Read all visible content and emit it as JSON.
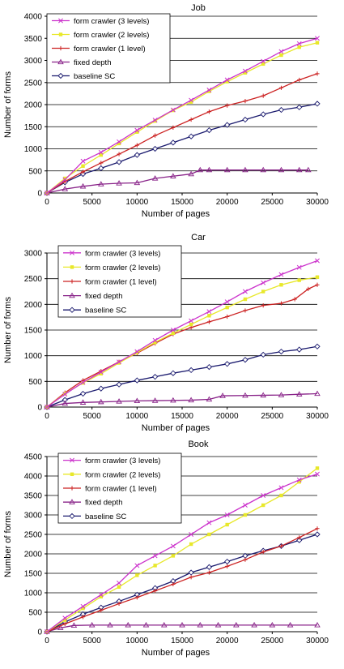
{
  "chart_data": [
    {
      "type": "line",
      "title": "Job",
      "xlabel": "Number of pages",
      "ylabel": "Number of forms",
      "xlim": [
        0,
        30000
      ],
      "ylim": [
        0,
        4000
      ],
      "xticks": [
        0,
        5000,
        10000,
        15000,
        20000,
        25000,
        30000
      ],
      "yticks": [
        0,
        500,
        1000,
        1500,
        2000,
        2500,
        3000,
        3500,
        4000
      ],
      "xtick_labels": [
        "0",
        "5000",
        "10000",
        "15000",
        "20000",
        "25000",
        "30000"
      ],
      "ytick_labels": [
        "0",
        "500",
        "1000",
        "1500",
        "2000",
        "2500",
        "3000",
        "3500",
        "4000"
      ],
      "grid": "horizontal",
      "legend_position": "top-left",
      "series": [
        {
          "name": "form crawler (3 levels)",
          "color": "#cc33cc",
          "marker": "x",
          "x": [
            0,
            2000,
            4000,
            6000,
            8000,
            10000,
            12000,
            14000,
            16000,
            18000,
            20000,
            22000,
            24000,
            26000,
            28000,
            30000
          ],
          "y": [
            0,
            300,
            720,
            920,
            1160,
            1420,
            1650,
            1880,
            2100,
            2330,
            2560,
            2760,
            2980,
            3200,
            3380,
            3500
          ]
        },
        {
          "name": "form crawler (2 levels)",
          "color": "#e8e82a",
          "marker": "square",
          "x": [
            0,
            2000,
            4000,
            6000,
            8000,
            10000,
            12000,
            14000,
            16000,
            18000,
            20000,
            22000,
            24000,
            26000,
            28000,
            30000
          ],
          "y": [
            0,
            330,
            610,
            860,
            1120,
            1380,
            1630,
            1870,
            2060,
            2300,
            2520,
            2720,
            2920,
            3120,
            3300,
            3400
          ]
        },
        {
          "name": "form crawler (1 level)",
          "color": "#cc2222",
          "marker": "plus",
          "x": [
            0,
            2000,
            4000,
            6000,
            8000,
            10000,
            12000,
            14000,
            16000,
            18000,
            20000,
            22000,
            24000,
            26000,
            28000,
            30000
          ],
          "y": [
            0,
            260,
            480,
            680,
            880,
            1080,
            1300,
            1480,
            1660,
            1840,
            1980,
            2080,
            2200,
            2380,
            2560,
            2700
          ]
        },
        {
          "name": "fixed depth",
          "color": "#882288",
          "marker": "triangle",
          "x": [
            0,
            2000,
            4000,
            6000,
            8000,
            10000,
            12000,
            14000,
            16000,
            17000,
            18000,
            20000,
            22000,
            24000,
            26000,
            28000,
            29000
          ],
          "y": [
            0,
            90,
            150,
            200,
            220,
            230,
            330,
            380,
            430,
            520,
            520,
            520,
            520,
            520,
            520,
            520,
            520
          ]
        },
        {
          "name": "baseline SC",
          "color": "#1a1a6e",
          "marker": "diamond",
          "x": [
            0,
            2000,
            4000,
            6000,
            8000,
            10000,
            12000,
            14000,
            16000,
            18000,
            20000,
            22000,
            24000,
            26000,
            28000,
            30000
          ],
          "y": [
            0,
            240,
            430,
            560,
            700,
            860,
            1000,
            1140,
            1280,
            1420,
            1540,
            1660,
            1780,
            1880,
            1940,
            2020
          ]
        }
      ]
    },
    {
      "type": "line",
      "title": "Car",
      "xlabel": "Number of pages",
      "ylabel": "Number of forms",
      "xlim": [
        0,
        30000
      ],
      "ylim": [
        0,
        3000
      ],
      "xticks": [
        0,
        5000,
        10000,
        15000,
        20000,
        25000,
        30000
      ],
      "yticks": [
        0,
        500,
        1000,
        1500,
        2000,
        2500,
        3000
      ],
      "xtick_labels": [
        "0",
        "5000",
        "10000",
        "15000",
        "20000",
        "25000",
        "30000"
      ],
      "ytick_labels": [
        "0",
        "500",
        "1000",
        "1500",
        "2000",
        "2500",
        "3000"
      ],
      "grid": "horizontal",
      "legend_position": "top-left",
      "series": [
        {
          "name": "form crawler (3 levels)",
          "color": "#cc33cc",
          "marker": "x",
          "x": [
            0,
            2000,
            4000,
            6000,
            8000,
            10000,
            12000,
            14000,
            16000,
            18000,
            20000,
            22000,
            24000,
            26000,
            28000,
            30000
          ],
          "y": [
            0,
            250,
            480,
            680,
            880,
            1080,
            1300,
            1500,
            1680,
            1860,
            2050,
            2250,
            2420,
            2580,
            2720,
            2850
          ]
        },
        {
          "name": "form crawler (2 levels)",
          "color": "#e8e82a",
          "marker": "square",
          "x": [
            0,
            2000,
            4000,
            6000,
            8000,
            10000,
            12000,
            14000,
            16000,
            18000,
            20000,
            22000,
            24000,
            26000,
            28000,
            30000
          ],
          "y": [
            0,
            260,
            470,
            650,
            860,
            1060,
            1260,
            1440,
            1610,
            1780,
            1940,
            2100,
            2250,
            2380,
            2470,
            2530
          ]
        },
        {
          "name": "form crawler (1 level)",
          "color": "#cc2222",
          "marker": "plus",
          "x": [
            0,
            2000,
            4000,
            6000,
            8000,
            10000,
            12000,
            14000,
            16000,
            18000,
            20000,
            22000,
            24000,
            26000,
            27500,
            29000,
            30000
          ],
          "y": [
            0,
            280,
            520,
            700,
            880,
            1050,
            1240,
            1420,
            1550,
            1660,
            1760,
            1880,
            1980,
            2020,
            2100,
            2300,
            2380
          ]
        },
        {
          "name": "fixed depth",
          "color": "#882288",
          "marker": "triangle",
          "x": [
            0,
            2000,
            4000,
            6000,
            8000,
            10000,
            12000,
            14000,
            16000,
            18000,
            19500,
            22000,
            24000,
            26000,
            28000,
            30000
          ],
          "y": [
            0,
            70,
            90,
            100,
            110,
            120,
            125,
            130,
            135,
            150,
            220,
            225,
            230,
            235,
            250,
            260
          ]
        },
        {
          "name": "baseline SC",
          "color": "#1a1a6e",
          "marker": "diamond",
          "x": [
            0,
            2000,
            4000,
            6000,
            8000,
            10000,
            12000,
            14000,
            16000,
            18000,
            20000,
            22000,
            24000,
            26000,
            28000,
            30000
          ],
          "y": [
            0,
            140,
            260,
            360,
            440,
            520,
            590,
            660,
            720,
            780,
            840,
            920,
            1020,
            1080,
            1120,
            1180
          ]
        }
      ]
    },
    {
      "type": "line",
      "title": "Book",
      "xlabel": "Number of pages",
      "ylabel": "Number of forms",
      "xlim": [
        0,
        30000
      ],
      "ylim": [
        0,
        4500
      ],
      "xticks": [
        0,
        5000,
        10000,
        15000,
        20000,
        25000,
        30000
      ],
      "yticks": [
        0,
        500,
        1000,
        1500,
        2000,
        2500,
        3000,
        3500,
        4000,
        4500
      ],
      "xtick_labels": [
        "0",
        "5000",
        "10000",
        "15000",
        "20000",
        "25000",
        "30000"
      ],
      "ytick_labels": [
        "0",
        "500",
        "1000",
        "1500",
        "2000",
        "2500",
        "3000",
        "3500",
        "4000",
        "4500"
      ],
      "grid": "horizontal",
      "legend_position": "top-left",
      "series": [
        {
          "name": "form crawler (3 levels)",
          "color": "#cc33cc",
          "marker": "x",
          "x": [
            0,
            2000,
            4000,
            6000,
            8000,
            10000,
            12000,
            14000,
            16000,
            18000,
            20000,
            22000,
            24000,
            26000,
            28000,
            30000
          ],
          "y": [
            0,
            350,
            650,
            950,
            1250,
            1700,
            1950,
            2200,
            2500,
            2800,
            3000,
            3250,
            3500,
            3700,
            3900,
            4050
          ]
        },
        {
          "name": "form crawler (2 levels)",
          "color": "#e8e82a",
          "marker": "square",
          "x": [
            0,
            2000,
            4000,
            6000,
            8000,
            10000,
            12000,
            14000,
            16000,
            18000,
            20000,
            22000,
            24000,
            26000,
            28000,
            30000
          ],
          "y": [
            0,
            300,
            600,
            900,
            1150,
            1450,
            1700,
            1950,
            2250,
            2500,
            2750,
            3000,
            3250,
            3500,
            3850,
            4200
          ]
        },
        {
          "name": "form crawler (1 level)",
          "color": "#cc2222",
          "marker": "plus",
          "x": [
            0,
            2000,
            4000,
            6000,
            8000,
            10000,
            12000,
            14000,
            16000,
            18000,
            20000,
            22000,
            24000,
            26000,
            28000,
            30000
          ],
          "y": [
            0,
            200,
            380,
            550,
            720,
            880,
            1050,
            1220,
            1400,
            1520,
            1680,
            1850,
            2050,
            2200,
            2420,
            2650
          ]
        },
        {
          "name": "fixed depth",
          "color": "#882288",
          "marker": "triangle",
          "x": [
            0,
            1500,
            3000,
            5000,
            7000,
            9000,
            11000,
            13000,
            15000,
            17000,
            19000,
            21000,
            23000,
            25000,
            27000,
            30000
          ],
          "y": [
            0,
            100,
            160,
            170,
            170,
            170,
            170,
            170,
            170,
            170,
            170,
            170,
            170,
            170,
            170,
            170
          ]
        },
        {
          "name": "baseline SC",
          "color": "#1a1a6e",
          "marker": "diamond",
          "x": [
            0,
            2000,
            4000,
            6000,
            8000,
            10000,
            12000,
            14000,
            16000,
            18000,
            20000,
            22000,
            24000,
            26000,
            28000,
            30000
          ],
          "y": [
            0,
            250,
            450,
            620,
            780,
            950,
            1120,
            1300,
            1520,
            1660,
            1800,
            1950,
            2080,
            2200,
            2350,
            2500
          ]
        }
      ]
    }
  ]
}
